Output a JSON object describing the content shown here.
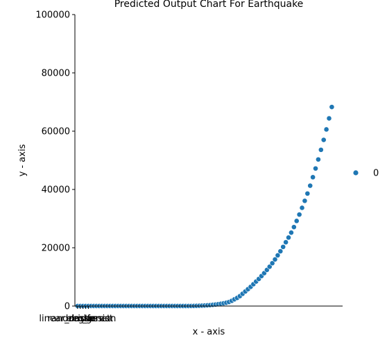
{
  "chart_data": {
    "type": "scatter",
    "title": "Predicted Output Chart For Earthquake",
    "xlabel": "x - axis",
    "ylabel": "y - axis",
    "xlim": [
      -1,
      98
    ],
    "ylim": [
      0,
      100000
    ],
    "yticks": [
      0,
      20000,
      40000,
      60000,
      80000,
      100000
    ],
    "xtick_labels": [
      "linear_regression",
      "random_forest",
      "lasso",
      "ridge",
      "elasticnet"
    ],
    "grid": false,
    "legend": {
      "position": "right",
      "entries": [
        {
          "label": "0",
          "color": "#1f77b4"
        }
      ]
    },
    "series": [
      {
        "name": "0",
        "color": "#1f77b4",
        "x": [
          0,
          1,
          2,
          3,
          4,
          5,
          6,
          7,
          8,
          9,
          10,
          11,
          12,
          13,
          14,
          15,
          16,
          17,
          18,
          19,
          20,
          21,
          22,
          23,
          24,
          25,
          26,
          27,
          28,
          29,
          30,
          31,
          32,
          33,
          34,
          35,
          36,
          37,
          38,
          39,
          40,
          41,
          42,
          43,
          44,
          45,
          46,
          47,
          48,
          49,
          50,
          51,
          52,
          53,
          54,
          55,
          56,
          57,
          58,
          59,
          60,
          61,
          62,
          63,
          64,
          65,
          66,
          67,
          68,
          69,
          70,
          71,
          72,
          73,
          74,
          75,
          76,
          77,
          78,
          79,
          80,
          81,
          82,
          83,
          84,
          85,
          86,
          87,
          88,
          89,
          90,
          91,
          92,
          93,
          94
        ],
        "y": [
          10,
          10,
          10,
          10,
          10,
          10,
          10,
          10,
          10,
          10,
          10,
          10,
          10,
          10,
          10,
          10,
          10,
          10,
          10,
          10,
          10,
          10,
          10,
          10,
          10,
          10,
          10,
          10,
          10,
          10,
          10,
          10,
          10,
          10,
          10,
          10,
          10,
          10,
          10,
          10,
          10,
          20,
          30,
          50,
          80,
          110,
          150,
          200,
          260,
          330,
          420,
          520,
          640,
          780,
          950,
          1150,
          1400,
          1800,
          2300,
          2800,
          3400,
          4200,
          5000,
          5800,
          6600,
          7500,
          8400,
          9300,
          10300,
          11300,
          12400,
          13500,
          14700,
          16000,
          17400,
          18800,
          20300,
          21900,
          23500,
          25200,
          27100,
          29200,
          31400,
          33700,
          36100,
          38600,
          41300,
          44200,
          47200,
          50300,
          53600,
          57000,
          60600,
          64400,
          68300
        ]
      }
    ]
  }
}
